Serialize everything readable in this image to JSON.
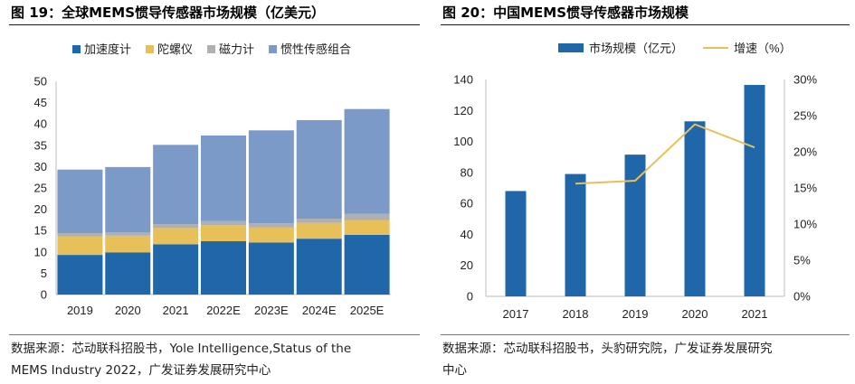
{
  "figures": [
    {
      "title": "图 19：全球MEMS惯导传感器市场规模（亿美元）",
      "source_line1": "数据来源：芯动联科招股书，Yole Intelligence,Status of the",
      "source_line2": "MEMS Industry 2022，广发证券发展研究中心"
    },
    {
      "title": "图 20：中国MEMS惯导传感器市场规模",
      "source_line1": "数据来源：芯动联科招股书，头豹研究院，广发证券发展研究",
      "source_line2": "中心"
    }
  ],
  "chart_data": [
    {
      "type": "bar",
      "stacked": true,
      "title": "全球MEMS惯导传感器市场规模（亿美元）",
      "xlabel": "",
      "ylabel": "",
      "categories": [
        "2019",
        "2020",
        "2021",
        "2022E",
        "2023E",
        "2024E",
        "2025E"
      ],
      "series": [
        {
          "name": "加速度计",
          "color": "#1f67a8",
          "values": [
            9.3,
            9.9,
            11.8,
            12.5,
            12.2,
            13.1,
            14.0
          ]
        },
        {
          "name": "陀螺仪",
          "color": "#e8c05a",
          "values": [
            4.3,
            3.9,
            3.8,
            3.8,
            3.5,
            3.7,
            3.4
          ]
        },
        {
          "name": "磁力计",
          "color": "#b0b0b0",
          "values": [
            0.8,
            0.8,
            0.9,
            0.9,
            1.0,
            1.0,
            1.5
          ]
        },
        {
          "name": "惯性传感组合",
          "color": "#7b9ac8",
          "values": [
            14.9,
            15.3,
            18.6,
            20.1,
            21.8,
            23.1,
            24.6
          ]
        }
      ],
      "ylim": [
        0,
        50
      ],
      "yticks": [
        "0",
        "5",
        "10",
        "15",
        "20",
        "25",
        "30",
        "35",
        "40",
        "45",
        "50"
      ],
      "grid": false,
      "legend": "top-left"
    },
    {
      "type": "bar+line",
      "title": "中国MEMS惯导传感器市场规模",
      "xlabel": "",
      "ylabel": "",
      "categories": [
        "2017",
        "2018",
        "2019",
        "2020",
        "2021"
      ],
      "series": [
        {
          "name": "市场规模（亿元）",
          "kind": "bar",
          "axis": "left",
          "color": "#1f67a8",
          "values": [
            68,
            79,
            91.5,
            113,
            136.5
          ]
        },
        {
          "name": "增速（%）",
          "kind": "line",
          "axis": "right",
          "color": "#e8c05a",
          "values": [
            null,
            15.6,
            16.0,
            23.8,
            20.6
          ]
        }
      ],
      "ylim": [
        0,
        140
      ],
      "yticks": [
        "0",
        "20",
        "40",
        "60",
        "80",
        "100",
        "120",
        "140"
      ],
      "y2lim": [
        0,
        30
      ],
      "y2ticks": [
        "0%",
        "5%",
        "10%",
        "15%",
        "20%",
        "25%",
        "30%"
      ],
      "grid": false,
      "legend": "top-center"
    }
  ]
}
